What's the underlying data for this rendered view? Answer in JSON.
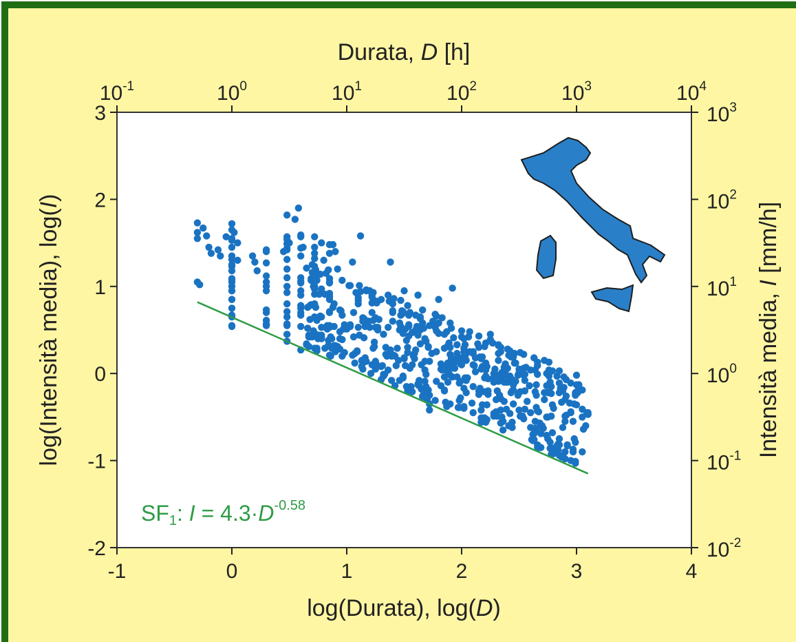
{
  "chart_data": {
    "type": "scatter",
    "xlabel_bottom": [
      "log(Durata), log(",
      "D",
      ")"
    ],
    "xlabel_top": [
      "Durata, ",
      "D",
      " [h]"
    ],
    "ylabel_left": [
      "log(Intensità media), log(",
      "I",
      ")"
    ],
    "ylabel_right": [
      "Intensità media, ",
      "I",
      " [mm/h]"
    ],
    "xlim": [
      -1,
      4
    ],
    "ylim": [
      -2,
      3
    ],
    "x_ticks": [
      "-1",
      "0",
      "1",
      "2",
      "3",
      "4"
    ],
    "y_ticks": [
      "-2",
      "-1",
      "0",
      "1",
      "2",
      "3"
    ],
    "top_ticks": [
      {
        "base": "10",
        "exp": "-1"
      },
      {
        "base": "10",
        "exp": "0"
      },
      {
        "base": "10",
        "exp": "1"
      },
      {
        "base": "10",
        "exp": "2"
      },
      {
        "base": "10",
        "exp": "3"
      },
      {
        "base": "10",
        "exp": "4"
      }
    ],
    "right_ticks": [
      {
        "base": "10",
        "exp": "-2"
      },
      {
        "base": "10",
        "exp": "-1"
      },
      {
        "base": "10",
        "exp": "0"
      },
      {
        "base": "10",
        "exp": "1"
      },
      {
        "base": "10",
        "exp": "2"
      },
      {
        "base": "10",
        "exp": "3"
      }
    ],
    "fit_line": {
      "x1": -0.3,
      "y1": 0.82,
      "x2": 3.1,
      "y2": -1.15
    },
    "annotation": {
      "prefix": "SF",
      "sub": "1",
      "mid": ": ",
      "I": "I",
      "eq": " = 4.3·",
      "D": "D",
      "exp": "-0.58"
    },
    "anchor_points": [
      [
        -0.3,
        1.73
      ],
      [
        -0.3,
        1.62
      ],
      [
        -0.3,
        1.55
      ],
      [
        -0.3,
        1.05
      ],
      [
        -0.28,
        1.02
      ],
      [
        -0.25,
        1.67
      ],
      [
        -0.22,
        1.58
      ],
      [
        -0.2,
        1.45
      ],
      [
        -0.18,
        1.38
      ],
      [
        -0.12,
        1.42
      ],
      [
        -0.1,
        1.35
      ],
      [
        -0.05,
        1.57
      ],
      [
        0.0,
        1.72
      ],
      [
        0.0,
        1.65
      ],
      [
        0.0,
        1.55
      ],
      [
        0.0,
        1.45
      ],
      [
        0.0,
        1.35
      ],
      [
        0.0,
        1.25
      ],
      [
        0.0,
        1.18
      ],
      [
        0.0,
        1.05
      ],
      [
        0.0,
        0.95
      ],
      [
        0.0,
        0.85
      ],
      [
        0.0,
        0.75
      ],
      [
        0.0,
        0.65
      ],
      [
        0.0,
        0.55
      ],
      [
        0.02,
        1.62
      ],
      [
        0.05,
        1.5
      ],
      [
        0.05,
        1.3
      ],
      [
        0.18,
        1.35
      ],
      [
        0.2,
        1.28
      ],
      [
        0.22,
        1.18
      ],
      [
        0.3,
        1.4
      ],
      [
        0.3,
        1.05
      ],
      [
        0.3,
        0.95
      ],
      [
        0.45,
        1.4
      ],
      [
        0.48,
        1.2
      ],
      [
        0.48,
        1.0
      ],
      [
        0.48,
        0.8
      ],
      [
        0.48,
        0.65
      ],
      [
        0.48,
        0.55
      ],
      [
        0.48,
        0.45
      ],
      [
        0.48,
        0.37
      ],
      [
        0.48,
        1.82
      ],
      [
        0.5,
        1.5
      ],
      [
        0.55,
        1.77
      ],
      [
        0.58,
        1.9
      ],
      [
        0.6,
        1.35
      ],
      [
        0.6,
        1.1
      ],
      [
        0.6,
        0.9
      ],
      [
        0.6,
        0.7
      ],
      [
        0.6,
        0.27
      ],
      [
        0.62,
        1.45
      ],
      [
        0.7,
        1.25
      ],
      [
        0.72,
        1.0
      ],
      [
        0.72,
        0.8
      ],
      [
        0.72,
        0.65
      ],
      [
        0.73,
        0.45
      ],
      [
        0.78,
        1.5
      ],
      [
        0.8,
        1.3
      ],
      [
        0.82,
        1.15
      ],
      [
        0.85,
        0.7
      ],
      [
        0.85,
        0.55
      ],
      [
        0.88,
        1.48
      ],
      [
        0.9,
        1.4
      ],
      [
        0.92,
        1.2
      ],
      [
        1.05,
        1.28
      ],
      [
        1.1,
        0.8
      ],
      [
        1.12,
        1.58
      ],
      [
        1.2,
        0.95
      ],
      [
        1.22,
        0.1
      ],
      [
        1.28,
        0.62
      ],
      [
        1.3,
        0.85
      ],
      [
        1.35,
        0.2
      ],
      [
        1.38,
        1.28
      ],
      [
        1.4,
        0.7
      ],
      [
        1.45,
        0.15
      ],
      [
        1.5,
        0.95
      ],
      [
        1.52,
        0.38
      ],
      [
        1.55,
        0.7
      ],
      [
        1.58,
        0.2
      ],
      [
        1.6,
        0.5
      ],
      [
        1.62,
        0.9
      ],
      [
        1.65,
        0.1
      ],
      [
        1.68,
        0.4
      ],
      [
        1.7,
        -0.2
      ],
      [
        1.72,
        -0.35
      ],
      [
        1.72,
        -0.42
      ],
      [
        1.75,
        0.6
      ],
      [
        1.78,
        0.25
      ],
      [
        1.8,
        0.85
      ],
      [
        1.82,
        0.05
      ],
      [
        1.85,
        0.45
      ],
      [
        1.88,
        -0.1
      ],
      [
        1.9,
        0.3
      ],
      [
        1.92,
        0.98
      ],
      [
        2.0,
        0.1
      ],
      [
        2.02,
        0.4
      ],
      [
        2.05,
        -0.05
      ],
      [
        2.1,
        0.25
      ],
      [
        2.15,
        -0.2
      ],
      [
        2.2,
        -0.05
      ],
      [
        2.25,
        0.45
      ],
      [
        2.3,
        -0.3
      ],
      [
        2.32,
        0.15
      ],
      [
        2.35,
        -0.5
      ],
      [
        2.4,
        -0.1
      ],
      [
        2.45,
        -0.35
      ],
      [
        2.5,
        0.05
      ],
      [
        2.55,
        -0.2
      ],
      [
        2.6,
        -0.45
      ],
      [
        2.65,
        -0.25
      ],
      [
        2.68,
        -0.85
      ],
      [
        2.7,
        -0.6
      ],
      [
        2.72,
        -0.3
      ],
      [
        2.75,
        -0.5
      ],
      [
        2.78,
        -0.15
      ],
      [
        2.8,
        -0.4
      ],
      [
        2.85,
        -0.75
      ],
      [
        2.88,
        -0.2
      ],
      [
        2.9,
        -0.55
      ],
      [
        2.95,
        -0.45
      ],
      [
        2.98,
        -0.35
      ],
      [
        3.05,
        -0.5
      ],
      [
        3.08,
        -0.6
      ],
      [
        3.1,
        -0.45
      ]
    ]
  },
  "colors": {
    "background": "#fef6a3",
    "frame_border": "#1f6e14",
    "plot_area": "#ffffff",
    "points": "#1a73c2",
    "fit_line": "#2e9c45",
    "map_fill": "#2a80c8",
    "map_stroke": "#1d1d1d",
    "axis": "#222222"
  },
  "inset": {
    "type": "map",
    "region": "Italy"
  }
}
